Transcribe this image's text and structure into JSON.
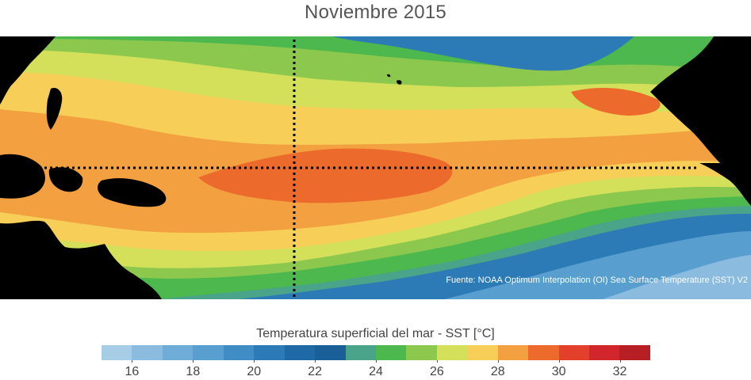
{
  "title": "Noviembre 2015",
  "source_note": "Fuente: NOAA Optimum Interpolation (OI) Sea Surface Temperature (SST) V2",
  "legend": {
    "title": "Temperatura superficial del mar - SST  [°C]",
    "min": 15,
    "max": 33,
    "bin_colors": [
      "#a7cce6",
      "#8bbcdf",
      "#6fadd8",
      "#589fcf",
      "#3f8dc4",
      "#2c7ab6",
      "#1f6aa6",
      "#1a5f97",
      "#49a48a",
      "#4cb84e",
      "#8cc84e",
      "#d4e05a",
      "#f6ce58",
      "#f2a040",
      "#ec6a2c",
      "#e2402a",
      "#d0262c",
      "#b81f24"
    ],
    "tick_labels": [
      "16",
      "18",
      "20",
      "22",
      "24",
      "26",
      "28",
      "30",
      "32"
    ]
  },
  "map": {
    "land_color": "#000000",
    "gridline_color": "#000000",
    "gridline_style": "dotted"
  },
  "colors": {
    "title": "#555555",
    "text": "#444444",
    "source_note": "#ffffff"
  }
}
